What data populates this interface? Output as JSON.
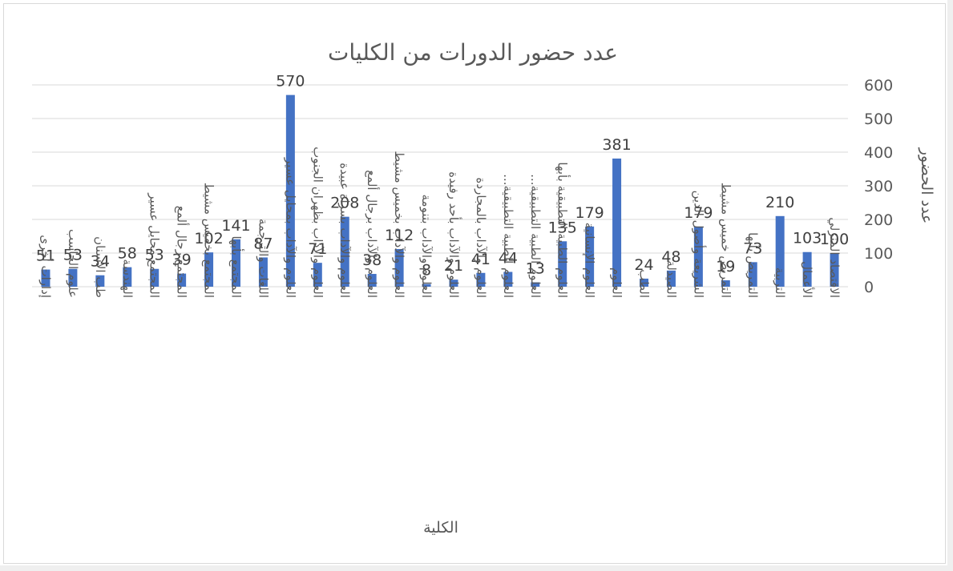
{
  "chart_data": {
    "type": "bar",
    "title": "عدد حضور الدورات من الكليات",
    "xlabel": "الكلية",
    "ylabel": "عدد الحضور",
    "ylim": [
      0,
      600
    ],
    "yticks": [
      0,
      100,
      200,
      300,
      400,
      500,
      600
    ],
    "y_axis_side": "right",
    "grid": true,
    "bar_color": "#4472c4",
    "categories": [
      "إدارات أخرى",
      "علوم الحاسب",
      "طب الأسنان",
      "الهندسة",
      "المجتمع محايل عسير",
      "المجتمع رجال ألمع",
      "المجتمع بخميس مشيط",
      "المجتمع بأبها",
      "اللغات والترجمة",
      "العلوم والآداب بمحايل عسير",
      "العلوم والآداب بظهران الجنوب",
      "العلوم والآداب بسراة عبيدة",
      "العلوم والآداب برجال ألمع",
      "العلوم والآداب بخميس مشيط",
      "العلوم والآداب بتنومة",
      "العلوم والآداب بأحد رفيدة",
      "العلوم والآداب بالمجاردة",
      "العلوم الطبية التطبيقية...",
      "العلوم الطبية التطبيقية...",
      "العلوم الطبية التطبيقية بأبها",
      "العلوم الإنسانية",
      "العلوم",
      "الطب",
      "الصيدلة",
      "الشريعة وأصول الدين",
      "التمريض خميس مشيط",
      "التمريض بأبها",
      "التربية",
      "الأعمال",
      "الاقتصاد المنزلي"
    ],
    "values": [
      51,
      53,
      34,
      58,
      53,
      39,
      102,
      141,
      87,
      570,
      71,
      208,
      38,
      112,
      8,
      21,
      41,
      44,
      13,
      135,
      179,
      381,
      24,
      48,
      179,
      19,
      73,
      210,
      103,
      100
    ]
  }
}
